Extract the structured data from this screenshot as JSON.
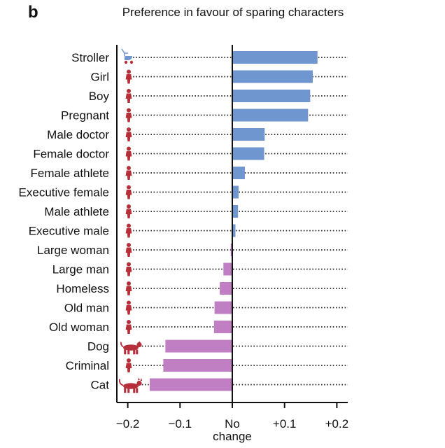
{
  "panel_label": "b",
  "chart_data": {
    "type": "bar",
    "orientation": "horizontal",
    "title": "Preference in favour of sparing characters",
    "xlabel": "",
    "ylabel": "",
    "categories": [
      "Stroller",
      "Girl",
      "Boy",
      "Pregnant",
      "Male doctor",
      "Female doctor",
      "Female athlete",
      "Executive female",
      "Male athlete",
      "Executive male",
      "Large woman",
      "Large man",
      "Homeless",
      "Old man",
      "Old woman",
      "Dog",
      "Criminal",
      "Cat"
    ],
    "values": [
      0.163,
      0.154,
      0.149,
      0.145,
      0.062,
      0.061,
      0.024,
      0.012,
      0.011,
      0.006,
      -0.003,
      -0.017,
      -0.024,
      -0.034,
      -0.035,
      -0.128,
      -0.132,
      -0.158
    ],
    "xlim": [
      -0.22,
      0.22
    ],
    "xticks": [
      -0.2,
      -0.1,
      0,
      0.1,
      0.2
    ],
    "xtick_labels": [
      "−0.2",
      "−0.1",
      "No",
      "+0.1",
      "+0.2"
    ],
    "zero_label_sub": "change",
    "colors": {
      "positive": "#6f96cf",
      "negative": "#c17fc3",
      "icon": "#b5303a",
      "dots": "#222222"
    },
    "grid": "dotted row guides",
    "icons": [
      "stroller-icon",
      "girl-icon",
      "boy-icon",
      "pregnant-woman-icon",
      "male-doctor-icon",
      "female-doctor-icon",
      "female-athlete-icon",
      "executive-female-icon",
      "male-athlete-icon",
      "executive-male-icon",
      "large-woman-icon",
      "large-man-icon",
      "homeless-icon",
      "old-man-icon",
      "old-woman-icon",
      "dog-icon",
      "criminal-icon",
      "cat-icon"
    ]
  }
}
